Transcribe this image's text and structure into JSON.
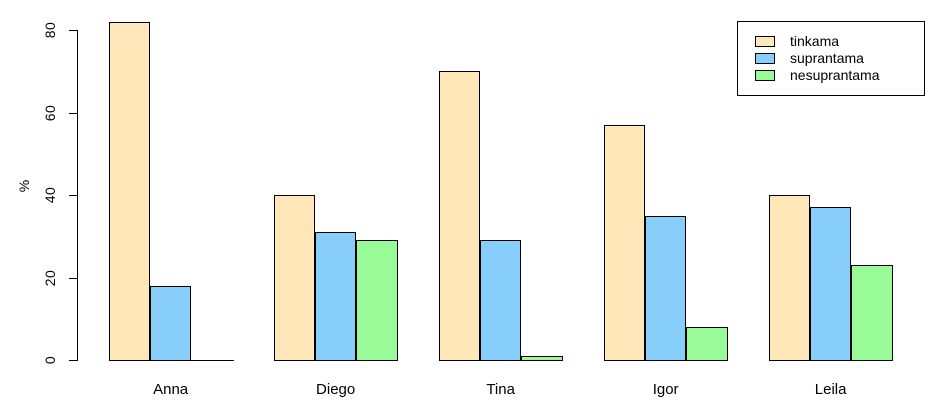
{
  "chart_data": {
    "type": "bar",
    "title": "",
    "xlabel": "",
    "ylabel": "%",
    "categories": [
      "Anna",
      "Diego",
      "Tina",
      "Igor",
      "Leila"
    ],
    "series": [
      {
        "name": "tinkama",
        "color": "#FFE7BA",
        "values": [
          82,
          40,
          70,
          57,
          40
        ]
      },
      {
        "name": "suprantama",
        "color": "#87CEFA",
        "values": [
          18,
          31,
          29,
          35,
          37
        ]
      },
      {
        "name": "nesuprantama",
        "color": "#98FB98",
        "values": [
          0,
          29,
          1,
          8,
          23
        ]
      }
    ],
    "yticks": [
      0,
      20,
      40,
      60,
      80
    ],
    "ylim": [
      0,
      80
    ],
    "grid": false,
    "legend_position": "top-right",
    "bar_border_color": "#000000",
    "background_color": "#FFFFFF"
  }
}
